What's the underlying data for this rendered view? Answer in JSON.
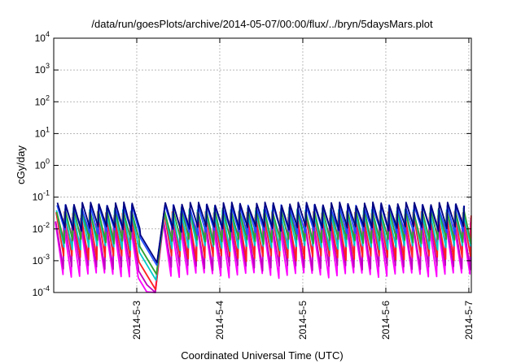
{
  "chart_data": {
    "type": "line",
    "title": "/data/run/goesPlots/archive/2014-05-07/00:00/flux/../bryn/5daysMars.plot",
    "xlabel": "Coordinated Universal Time (UTC)",
    "ylabel": "cGy/day",
    "yscale": "log",
    "ylim": [
      0.0001,
      10000
    ],
    "xlim_days": [
      2.0,
      7.03
    ],
    "grid": true,
    "legend": "none",
    "y_ticks": [
      {
        "base": "10",
        "exp": "-4",
        "value": 0.0001
      },
      {
        "base": "10",
        "exp": "-3",
        "value": 0.001
      },
      {
        "base": "10",
        "exp": "-2",
        "value": 0.01
      },
      {
        "base": "10",
        "exp": "-1",
        "value": 0.1
      },
      {
        "base": "10",
        "exp": "0",
        "value": 1
      },
      {
        "base": "10",
        "exp": "1",
        "value": 10
      },
      {
        "base": "10",
        "exp": "2",
        "value": 100
      },
      {
        "base": "10",
        "exp": "3",
        "value": 1000
      },
      {
        "base": "10",
        "exp": "4",
        "value": 10000
      }
    ],
    "x_ticks": [
      {
        "label": "2014-5-3",
        "day": 3
      },
      {
        "label": "2014-5-4",
        "day": 4
      },
      {
        "label": "2014-5-5",
        "day": 5
      },
      {
        "label": "2014-5-6",
        "day": 6
      },
      {
        "label": "2014-5-7",
        "day": 7
      }
    ],
    "sawtooth": {
      "period_days": 0.1,
      "start_day": 2.02,
      "gap_start_day": 3.0,
      "gap_end_day": 3.3,
      "gap_floor": 0.0001,
      "series": [
        {
          "color": "#ff00ff",
          "peak": 0.015,
          "trough": 0.00035
        },
        {
          "color": "#c000c0",
          "peak": 0.02,
          "trough": 0.0006
        },
        {
          "color": "#ff2020",
          "peak": 0.03,
          "trough": 0.0012
        },
        {
          "color": "#00c8c8",
          "peak": 0.035,
          "trough": 0.0025
        },
        {
          "color": "#30a030",
          "peak": 0.04,
          "trough": 0.004
        },
        {
          "color": "#2050ff",
          "peak": 0.05,
          "trough": 0.008
        },
        {
          "color": "#000080",
          "peak": 0.06,
          "trough": 0.01
        }
      ]
    }
  }
}
